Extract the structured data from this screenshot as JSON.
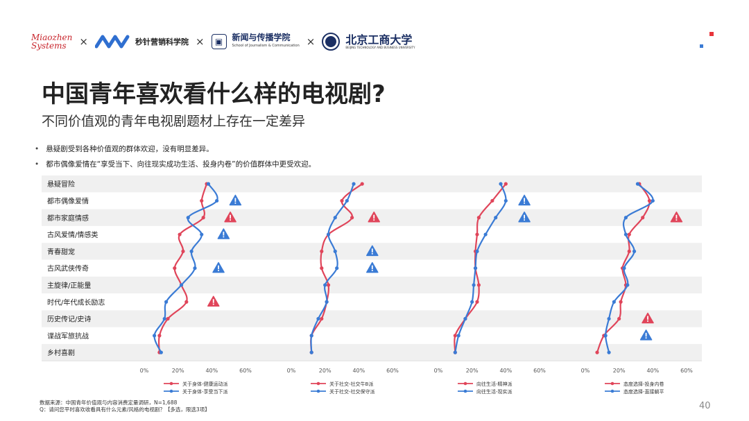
{
  "header": {
    "logo_text_1": "Miaozhen",
    "logo_text_2": "Systems",
    "separator": "×",
    "brand2_text": "秒针营销科学院",
    "school_name": "新闻与传播学院",
    "school_subtitle": "School of Journalism & Communication",
    "university_name": "北京工商大学",
    "university_subtitle": "BEIJING TECHNOLOGY AND BUSINESS UNIVERSITY"
  },
  "title": "中国青年喜欢看什么样的电视剧?",
  "subtitle": "不同价值观的青年电视剧题材上存在一定差异",
  "bullets": [
    "悬疑剧受到各种价值观的群体欢迎，没有明显差异。",
    "都市偶像爱情在“享受当下、向往现实成功生活、投身内卷”的价值群体中更受欢迎。"
  ],
  "chart_data": {
    "type": "line",
    "categories": [
      "悬疑冒险",
      "都市偶像爱情",
      "都市家庭情感",
      "古风爱情/情感类",
      "青春甜宠",
      "古风武侠传奇",
      "主旋律/正能量",
      "时代/年代成长励志",
      "历史传记/史诗",
      "谍战军旅抗战",
      "乡村喜剧"
    ],
    "xlim": [
      0,
      60
    ],
    "xticks": [
      "0%",
      "20%",
      "40%",
      "60%"
    ],
    "colors": {
      "red": "#e0455a",
      "blue": "#3a7bd5"
    },
    "panels": [
      {
        "series": [
          {
            "name": "关于身体-健康运动派",
            "color": "#e0455a",
            "values": [
              37,
              34,
              35,
              21,
              23,
              18,
              22,
              25,
              14,
              9,
              9
            ]
          },
          {
            "name": "关于身体-享受当下派",
            "color": "#3a7bd5",
            "values": [
              38,
              43,
              26,
              34,
              28,
              30,
              22,
              13,
              12,
              6,
              10
            ]
          }
        ],
        "markers": [
          {
            "category": "都市偶像爱情",
            "value": 54,
            "color": "blue"
          },
          {
            "category": "都市家庭情感",
            "value": 51,
            "color": "red"
          },
          {
            "category": "古风爱情/情感类",
            "value": 47,
            "color": "blue"
          },
          {
            "category": "古风武侠传奇",
            "value": 44,
            "color": "blue"
          },
          {
            "category": "时代/年代成长励志",
            "value": 41,
            "color": "red"
          }
        ]
      },
      {
        "series": [
          {
            "name": "关于社交-社交牛B派",
            "color": "#e0455a",
            "values": [
              42,
              30,
              36,
              22,
              18,
              18,
              22,
              21,
              18,
              12,
              12
            ]
          },
          {
            "name": "关于社交-社交保守派",
            "color": "#3a7bd5",
            "values": [
              37,
              33,
              26,
              22,
              26,
              27,
              20,
              21,
              16,
              12,
              12
            ]
          }
        ],
        "markers": [
          {
            "category": "都市家庭情感",
            "value": 49,
            "color": "red"
          },
          {
            "category": "青春甜宠",
            "value": 48,
            "color": "blue"
          },
          {
            "category": "古风武侠传奇",
            "value": 48,
            "color": "blue"
          }
        ]
      },
      {
        "series": [
          {
            "name": "向往生活-精神派",
            "color": "#e0455a",
            "values": [
              40,
              32,
              24,
              23,
              22,
              22,
              24,
              23,
              16,
              10,
              10
            ]
          },
          {
            "name": "向往生活-现实派",
            "color": "#3a7bd5",
            "values": [
              37,
              40,
              34,
              28,
              23,
              22,
              21,
              20,
              16,
              12,
              10
            ]
          }
        ],
        "markers": [
          {
            "category": "都市偶像爱情",
            "value": 51,
            "color": "blue"
          },
          {
            "category": "都市家庭情感",
            "value": 51,
            "color": "blue"
          }
        ]
      },
      {
        "series": [
          {
            "name": "态度选择-投身内卷",
            "color": "#e0455a",
            "values": [
              32,
              38,
              34,
              26,
              26,
              22,
              24,
              21,
              20,
              11,
              7
            ]
          },
          {
            "name": "态度选择-直接躺平",
            "color": "#3a7bd5",
            "values": [
              31,
              40,
              24,
              24,
              29,
              23,
              25,
              17,
              14,
              12,
              14
            ]
          }
        ],
        "markers": [
          {
            "category": "都市家庭情感",
            "value": 54,
            "color": "red"
          },
          {
            "category": "历史传记/史诗",
            "value": 37,
            "color": "red"
          },
          {
            "category": "谍战军旅抗战",
            "value": 36,
            "color": "blue"
          }
        ]
      }
    ]
  },
  "footnote": {
    "line1": "数据来源：中国青年价值观与内容消费定量调研，N=1,688",
    "line2": "Q：请问您平时喜欢收看具有什么元素/风格的电视剧？【多选，限选3项】"
  },
  "page_number": "40"
}
